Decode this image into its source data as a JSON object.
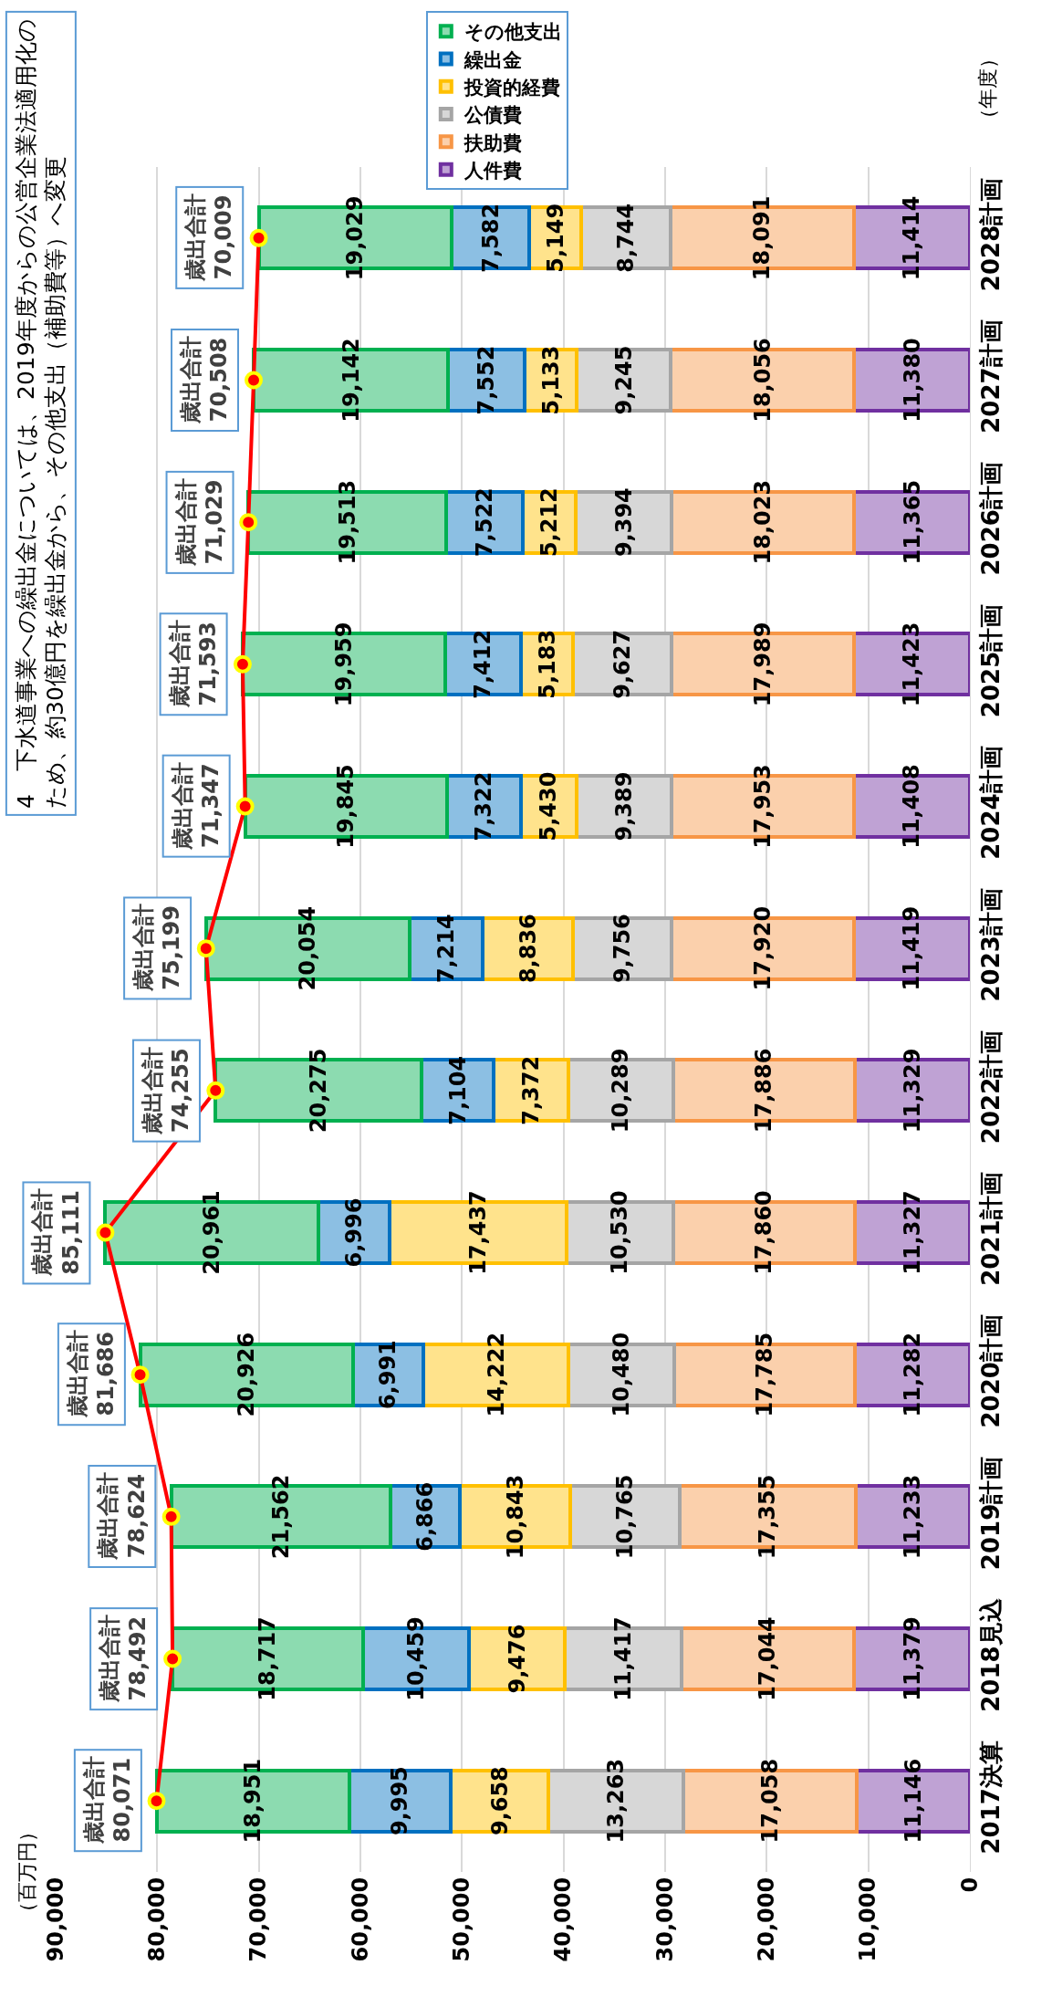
{
  "chart_data": {
    "type": "bar",
    "orientation": "horizontal",
    "stacked": true,
    "grid": "x",
    "legend": "top",
    "ylabel": "（年度）",
    "categories": [
      "2028計画",
      "2027計画",
      "2026計画",
      "2025計画",
      "2024計画",
      "2023計画",
      "2022計画",
      "2021計画",
      "2020計画",
      "2019計画",
      "2018見込",
      "2017決算"
    ],
    "xlim": [
      90000,
      0
    ],
    "xticks": [
      {
        "value": 0,
        "label": "0"
      },
      {
        "value": 10000,
        "label": "10,000"
      },
      {
        "value": 20000,
        "label": "20,000"
      },
      {
        "value": 30000,
        "label": "30,000"
      },
      {
        "value": 40000,
        "label": "40,000"
      },
      {
        "value": 50000,
        "label": "50,000"
      },
      {
        "value": 60000,
        "label": "60,000"
      },
      {
        "value": 70000,
        "label": "70,000"
      },
      {
        "value": 80000,
        "label": "80,000"
      },
      {
        "value": 90000,
        "label": "90,000"
      }
    ],
    "series": [
      {
        "name": "人件費",
        "color": "#7030a0",
        "values": [
          11414,
          11380,
          11365,
          11423,
          11408,
          11419,
          11329,
          11327,
          11282,
          11233,
          11379,
          11146
        ],
        "value_labels": [
          "11,414",
          "11,380",
          "11,365",
          "11,423",
          "11,408",
          "11,419",
          "11,329",
          "11,327",
          "11,282",
          "11,233",
          "11,379",
          "11,146"
        ]
      },
      {
        "name": "扶助費",
        "color": "#f79646",
        "values": [
          18091,
          18056,
          18023,
          17989,
          17953,
          17920,
          17886,
          17860,
          17785,
          17355,
          17044,
          17058
        ],
        "value_labels": [
          "18,091",
          "18,056",
          "18,023",
          "17,989",
          "17,953",
          "17,920",
          "17,886",
          "17,860",
          "17,785",
          "17,355",
          "17,044",
          "17,058"
        ]
      },
      {
        "name": "公債費",
        "color": "#a5a5a5",
        "values": [
          8744,
          9245,
          9394,
          9627,
          9389,
          9756,
          10289,
          10530,
          10480,
          10765,
          11417,
          13263
        ],
        "value_labels": [
          "8,744",
          "9,245",
          "9,394",
          "9,627",
          "9,389",
          "9,756",
          "10,289",
          "10,530",
          "10,480",
          "10,765",
          "11,417",
          "13,263"
        ]
      },
      {
        "name": "投資的経費",
        "color": "#ffc000",
        "values": [
          5149,
          5133,
          5212,
          5183,
          5430,
          8836,
          7372,
          17437,
          14222,
          10843,
          9476,
          9658
        ],
        "value_labels": [
          "5,149",
          "5,133",
          "5,212",
          "5,183",
          "5,430",
          "8,836",
          "7,372",
          "17,437",
          "14,222",
          "10,843",
          "9,476",
          "9,658"
        ]
      },
      {
        "name": "繰出金",
        "color": "#0070c0",
        "values": [
          7582,
          7552,
          7522,
          7412,
          7322,
          7214,
          7104,
          6996,
          6991,
          6866,
          10459,
          9995
        ],
        "value_labels": [
          "7,582",
          "7,552",
          "7,522",
          "7,412",
          "7,322",
          "7,214",
          "7,104",
          "6,996",
          "6,991",
          "6,866",
          "10,459",
          "9,995"
        ]
      },
      {
        "name": "その他支出",
        "color": "#00b050",
        "values": [
          19029,
          19142,
          19513,
          19959,
          19845,
          20054,
          20275,
          20961,
          20926,
          21562,
          18717,
          18951
        ],
        "value_labels": [
          "19,029",
          "19,142",
          "19,513",
          "19,959",
          "19,845",
          "20,054",
          "20,275",
          "20,961",
          "20,926",
          "21,562",
          "18,717",
          "18,951"
        ]
      },
      {
        "type": "line",
        "color": "#ff0000",
        "marker": "circle",
        "line_style": "solid",
        "values": [
          70009,
          70508,
          71029,
          71593,
          71347,
          75199,
          74255,
          85111,
          81686,
          78624,
          78492,
          80071
        ],
        "value_labels": [
          "歳出合計\n70,009",
          "歳出合計\n70,508",
          "歳出合計\n71,029",
          "歳出合計\n71,593",
          "歳出合計\n71,347",
          "歳出合計\n75,199",
          "歳出合計\n74,255",
          "歳出合計\n85,111",
          "歳出合計\n81,686",
          "歳出合計\n78,624",
          "歳出合計\n78,492",
          "歳出合計\n80,071"
        ]
      }
    ],
    "annotations": [
      "4　下水道事業への繰出金については、2019年度からの公営企業法適用化のため、約30億円を繰出金から、その他支出（補助費等）へ変更",
      "（百万円）"
    ]
  }
}
